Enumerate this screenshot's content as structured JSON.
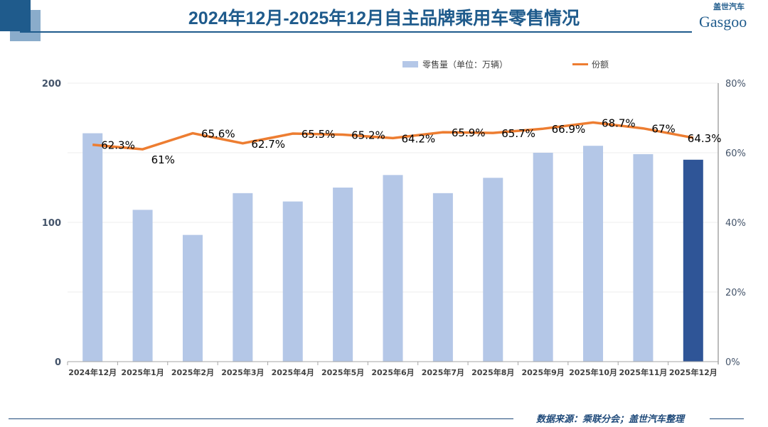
{
  "header": {
    "title": "2024年12月-2025年12月自主品牌乘用车零售情况",
    "logo_cn": "盖世汽车",
    "logo_en": "Gasgoo"
  },
  "footer": {
    "source": "数据来源：乘联分会；盖世汽车整理"
  },
  "colors": {
    "bar": "#b4c7e7",
    "bar_highlight": "#2f5597",
    "line": "#ed7d31",
    "title": "#1f5b8c"
  },
  "chart_data": {
    "type": "bar+line",
    "categories": [
      "2024年12月",
      "2025年1月",
      "2025年2月",
      "2025年3月",
      "2025年4月",
      "2025年5月",
      "2025年6月",
      "2025年7月",
      "2025年8月",
      "2025年9月",
      "2025年10月",
      "2025年11月",
      "2025年12月"
    ],
    "series": [
      {
        "name": "零售量（单位：万辆）",
        "type": "bar",
        "axis": "left",
        "values": [
          164,
          109,
          91,
          121,
          115,
          125,
          134,
          121,
          132,
          150,
          155,
          149,
          145
        ],
        "highlight_index": 12
      },
      {
        "name": "份额",
        "type": "line",
        "axis": "right",
        "values": [
          62.3,
          61,
          65.6,
          62.7,
          65.5,
          65.2,
          64.2,
          65.9,
          65.7,
          66.9,
          68.7,
          67,
          64.3
        ],
        "labels": [
          "62.3%",
          "61%",
          "65.6%",
          "62.7%",
          "65.5%",
          "65.2%",
          "64.2%",
          "65.9%",
          "65.7%",
          "66.9%",
          "68.7%",
          "67%",
          "64.3%"
        ]
      }
    ],
    "y_left": {
      "ticks": [
        "0",
        "100",
        "200"
      ],
      "range": [
        0,
        200
      ]
    },
    "y_right": {
      "ticks": [
        "0%",
        "20%",
        "40%",
        "60%",
        "80%"
      ],
      "range": [
        0,
        80
      ]
    },
    "grid": true,
    "legend": "top-right"
  }
}
